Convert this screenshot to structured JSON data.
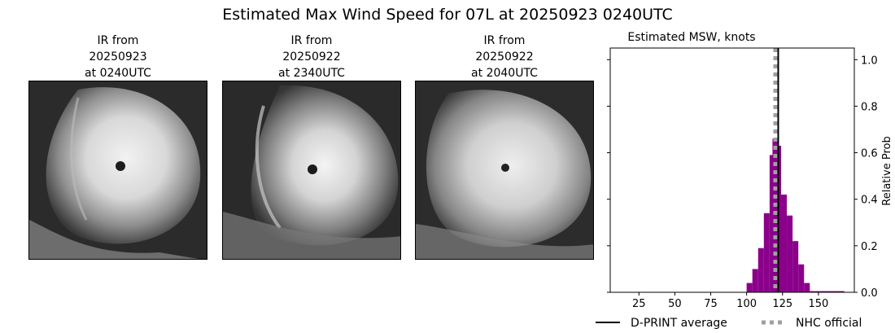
{
  "figure": {
    "title": "Estimated Max Wind Speed for 07L at 20250923 0240UTC"
  },
  "ir_panels": [
    {
      "line1": "IR from",
      "line2": "20250923",
      "line3": "at 0240UTC"
    },
    {
      "line1": "IR from",
      "line2": "20250922",
      "line3": "at 2340UTC"
    },
    {
      "line1": "IR from",
      "line2": "20250922",
      "line3": "at 2040UTC"
    }
  ],
  "chart_data": {
    "type": "bar",
    "title": "Estimated MSW, knots",
    "xlabel": "",
    "ylabel": "Relative Prob",
    "xlim": [
      5,
      175
    ],
    "ylim": [
      0,
      1.05
    ],
    "xticks": [
      25,
      50,
      75,
      100,
      125,
      150
    ],
    "yticks": [
      0.0,
      0.2,
      0.4,
      0.6,
      0.8,
      1.0
    ],
    "y_axis_side": "right",
    "bin_width": 4,
    "bins": [
      {
        "start": 100,
        "value": 0.04
      },
      {
        "start": 104,
        "value": 0.1
      },
      {
        "start": 108,
        "value": 0.19
      },
      {
        "start": 112,
        "value": 0.34
      },
      {
        "start": 116,
        "value": 0.59
      },
      {
        "start": 118,
        "value": 0.66
      },
      {
        "start": 120,
        "value": 0.63
      },
      {
        "start": 124,
        "value": 0.42
      },
      {
        "start": 128,
        "value": 0.33
      },
      {
        "start": 132,
        "value": 0.22
      },
      {
        "start": 136,
        "value": 0.12
      },
      {
        "start": 140,
        "value": 0.04
      },
      {
        "start": 144,
        "value": 0.005
      },
      {
        "start": 148,
        "value": 0.005
      },
      {
        "start": 152,
        "value": 0.005
      },
      {
        "start": 156,
        "value": 0.005
      },
      {
        "start": 160,
        "value": 0.005
      },
      {
        "start": 164,
        "value": 0.005
      }
    ],
    "bar_color": "#8B008B",
    "dprint_average": 122,
    "nhc_official": 120,
    "legend": [
      {
        "label": "D-PRINT average",
        "style": "solid",
        "color": "#000000"
      },
      {
        "label": "NHC official",
        "style": "dotted",
        "color": "#a0a0a0"
      }
    ],
    "legend_position": "bottom"
  }
}
